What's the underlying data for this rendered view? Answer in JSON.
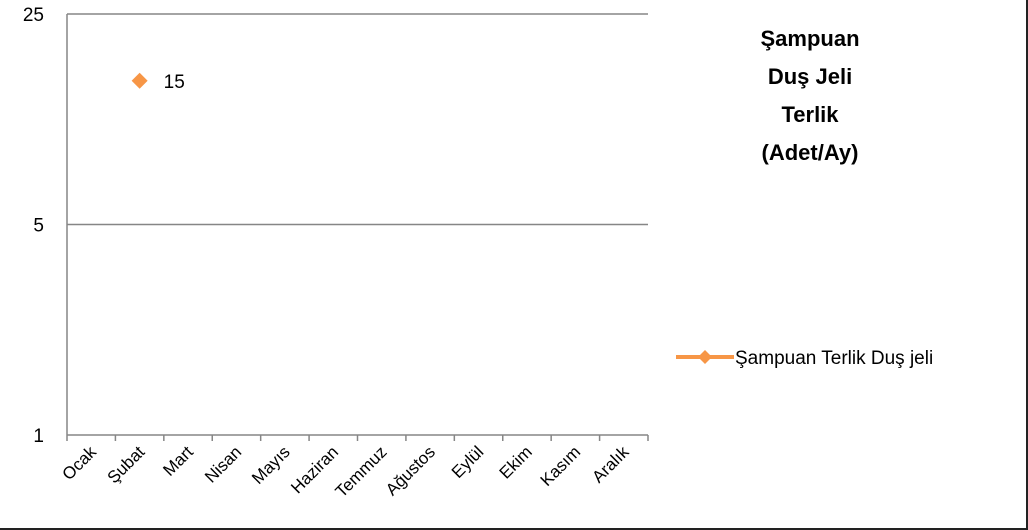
{
  "chart_data": {
    "type": "line",
    "title_lines": [
      "Şampuan",
      "Duş Jeli",
      "Terlik",
      "(Adet/Ay)"
    ],
    "categories": [
      "Ocak",
      "Şubat",
      "Mart",
      "Nisan",
      "Mayıs",
      "Haziran",
      "Temmuz",
      "Ağustos",
      "Eylül",
      "Ekim",
      "Kasım",
      "Aralık"
    ],
    "y_axis": {
      "scale": "log",
      "ticks": [
        1,
        5,
        25
      ],
      "tick_labels": [
        "1",
        "5",
        "25"
      ],
      "ylim": [
        1,
        25
      ]
    },
    "grid": true,
    "legend_position": "right",
    "series": [
      {
        "name": "Şampuan Terlik Duş jeli",
        "color": "#F79646",
        "marker": "diamond",
        "values": [
          null,
          15,
          null,
          null,
          null,
          null,
          null,
          null,
          null,
          null,
          null,
          null
        ],
        "data_labels": [
          null,
          "15",
          null,
          null,
          null,
          null,
          null,
          null,
          null,
          null,
          null,
          null
        ]
      }
    ]
  }
}
